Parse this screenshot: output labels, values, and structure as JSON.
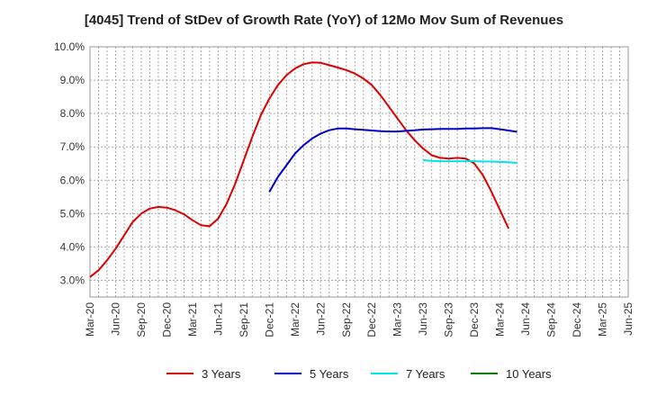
{
  "chart_data": {
    "type": "line",
    "title": "[4045]  Trend of StDev of Growth Rate (YoY) of 12Mo Mov Sum of Revenues",
    "xlabel": "",
    "ylabel": "",
    "ylim": [
      2.5,
      10.0
    ],
    "yticks": [
      "3.0%",
      "4.0%",
      "5.0%",
      "6.0%",
      "7.0%",
      "8.0%",
      "9.0%",
      "10.0%"
    ],
    "ytick_values": [
      3.0,
      4.0,
      5.0,
      6.0,
      7.0,
      8.0,
      9.0,
      10.0
    ],
    "x_start": "Mar-20",
    "x_end": "Jun-25",
    "xticks": [
      "Mar-20",
      "Jun-20",
      "Sep-20",
      "Dec-20",
      "Mar-21",
      "Jun-21",
      "Sep-21",
      "Dec-21",
      "Mar-22",
      "Jun-22",
      "Sep-22",
      "Dec-22",
      "Mar-23",
      "Jun-23",
      "Sep-23",
      "Dec-23",
      "Mar-24",
      "Jun-24",
      "Sep-24",
      "Dec-24",
      "Mar-25",
      "Jun-25"
    ],
    "grid": true,
    "legend_position": "bottom",
    "series": [
      {
        "name": "3 Years",
        "color": "#dd0000",
        "start_index": 0,
        "values": [
          3.1,
          3.3,
          3.6,
          3.95,
          4.35,
          4.75,
          5.0,
          5.15,
          5.2,
          5.18,
          5.1,
          4.98,
          4.8,
          4.65,
          4.62,
          4.85,
          5.3,
          5.9,
          6.6,
          7.3,
          7.95,
          8.45,
          8.85,
          9.15,
          9.35,
          9.48,
          9.53,
          9.52,
          9.45,
          9.38,
          9.3,
          9.2,
          9.05,
          8.85,
          8.55,
          8.2,
          7.85,
          7.5,
          7.2,
          6.95,
          6.75,
          6.67,
          6.65,
          6.67,
          6.65,
          6.5,
          6.15,
          5.65,
          5.1,
          4.55
        ]
      },
      {
        "name": "5 Years",
        "color": "#0000cc",
        "start_index": 21,
        "values": [
          5.65,
          6.1,
          6.45,
          6.8,
          7.05,
          7.25,
          7.4,
          7.5,
          7.55,
          7.55,
          7.53,
          7.51,
          7.49,
          7.47,
          7.46,
          7.46,
          7.48,
          7.5,
          7.52,
          7.53,
          7.54,
          7.54,
          7.54,
          7.55,
          7.55,
          7.56,
          7.56,
          7.53,
          7.49,
          7.45
        ]
      },
      {
        "name": "7 Years",
        "color": "#00e5e5",
        "start_index": 39,
        "values": [
          6.6,
          6.58,
          6.57,
          6.57,
          6.57,
          6.57,
          6.57,
          6.56,
          6.56,
          6.55,
          6.54,
          6.52
        ]
      },
      {
        "name": "10 Years",
        "color": "#008000",
        "start_index": 0,
        "values": []
      }
    ]
  }
}
